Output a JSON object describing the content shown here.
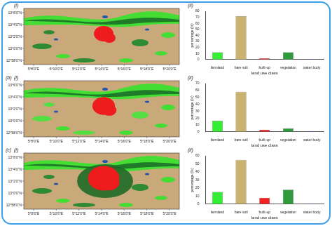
{
  "chart_data": [
    {
      "type": "bar",
      "categories": [
        "farmland",
        "bare soil",
        "built-up",
        "vegetation",
        "water body"
      ],
      "values": [
        12,
        72,
        2,
        12,
        1
      ],
      "colors": [
        "#33ee33",
        "#c9b36e",
        "#ee2222",
        "#2e9a3a",
        "#3366dd"
      ],
      "xlabel": "land use class",
      "ylabel": "percentage (%)",
      "ylim": [
        0,
        80
      ],
      "yticks": [
        0,
        10,
        20,
        30,
        40,
        50,
        60,
        70,
        80
      ],
      "grid": false
    },
    {
      "type": "bar",
      "categories": [
        "farmland",
        "bare soil",
        "built-up",
        "vegetation",
        "water body"
      ],
      "values": [
        16,
        58,
        3,
        5,
        1
      ],
      "colors": [
        "#33ee33",
        "#c9b36e",
        "#ee2222",
        "#2e9a3a",
        "#3366dd"
      ],
      "xlabel": "land use class",
      "ylabel": "percentage (%)",
      "ylim": [
        0,
        70
      ],
      "yticks": [
        0,
        10,
        20,
        30,
        40,
        50,
        60,
        70
      ],
      "grid": false
    },
    {
      "type": "bar",
      "categories": [
        "farmland",
        "bare soil",
        "built-up",
        "vegetation",
        "water body"
      ],
      "values": [
        15,
        55,
        8,
        18,
        1
      ],
      "colors": [
        "#33ee33",
        "#c9b36e",
        "#ee2222",
        "#2e9a3a",
        "#3366dd"
      ],
      "xlabel": "land use class",
      "ylabel": "percentage (%)",
      "ylim": [
        0,
        60
      ],
      "yticks": [
        0,
        10,
        20,
        30,
        40,
        50,
        60
      ],
      "grid": false
    }
  ],
  "rows": [
    {
      "map_label": "(i)",
      "chart_label": "(ii)",
      "lat_labels": [
        "13°6'0\"N",
        "13°4'0\"N",
        "13°2'0\"N",
        "13°0'0\"N",
        "12°58'0\"N"
      ],
      "lon_labels": [
        "5°8'0\"E",
        "5°10'0\"E",
        "5°12'0\"E",
        "5°14'0\"E",
        "5°16'0\"E",
        "5°18'0\"E",
        "5°20'0\"E"
      ]
    },
    {
      "row_label": "(b)",
      "map_label": "(i)",
      "chart_label": "(ii)",
      "lat_labels": [
        "13°6'0\"N",
        "13°4'0\"N",
        "13°2'0\"N",
        "13°0'0\"N",
        "12°58'0\"N"
      ],
      "lon_labels": [
        "5°8'0\"E",
        "5°10'0\"E",
        "5°12'0\"E",
        "5°14'0\"E",
        "5°16'0\"E",
        "5°18'0\"E",
        "5°20'0\"E"
      ]
    },
    {
      "row_label": "(c)",
      "map_label": "(i)",
      "chart_label": "(ii)",
      "lat_labels": [
        "13°6'0\"N",
        "13°4'0\"N",
        "13°2'0\"N",
        "13°0'0\"N",
        "12°58'0\"N"
      ],
      "lon_labels": [
        "5°8'0\"E",
        "5°10'0\"E",
        "5°12'0\"E",
        "5°14'0\"E",
        "5°16'0\"E",
        "5°18'0\"E",
        "5°20'0\"E"
      ]
    }
  ]
}
